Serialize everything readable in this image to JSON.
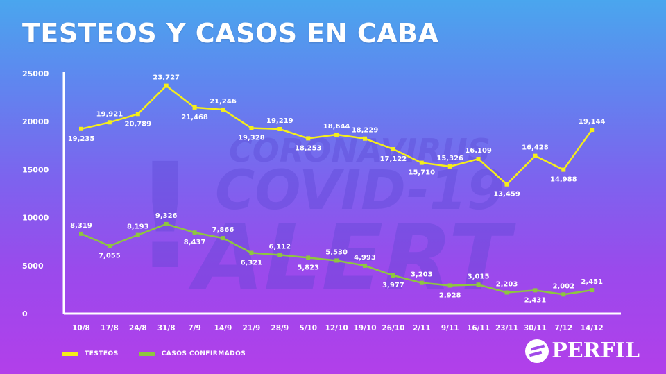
{
  "title": "TESTEOS Y CASOS EN CABA",
  "watermark": {
    "line1": "CORONAVIRUS",
    "line2": "COVID-19",
    "line3": "ALERT",
    "mark": "!"
  },
  "logo": {
    "text": "PERFIL"
  },
  "legend": [
    {
      "label": "TESTEOS",
      "color": "#f5ee1a"
    },
    {
      "label": "CASOS CONFIRMADOS",
      "color": "#8ec63f"
    }
  ],
  "chart_data": {
    "type": "line",
    "categories": [
      "10/8",
      "17/8",
      "24/8",
      "31/8",
      "7/9",
      "14/9",
      "21/9",
      "28/9",
      "5/10",
      "12/10",
      "19/10",
      "26/10",
      "2/11",
      "9/11",
      "16/11",
      "23/11",
      "30/11",
      "7/12",
      "14/12"
    ],
    "series": [
      {
        "name": "TESTEOS",
        "color": "#f5ee1a",
        "values": [
          19235,
          19921,
          20789,
          23727,
          21468,
          21246,
          19328,
          19219,
          18253,
          18644,
          18229,
          17122,
          15710,
          15326,
          16109,
          13459,
          16428,
          14988,
          19144
        ],
        "labels": [
          "19,235",
          "19,921",
          "20,789",
          "23,727",
          "21,468",
          "21,246",
          "19,328",
          "19,219",
          "18,253",
          "18,644",
          "18,229",
          "17,122",
          "15,710",
          "15,326",
          "16.109",
          "13,459",
          "16,428",
          "14,988",
          "19,144"
        ],
        "label_pos": [
          "below",
          "above",
          "below",
          "above",
          "below",
          "above",
          "below",
          "above",
          "below",
          "above",
          "above",
          "below",
          "below",
          "above",
          "above",
          "below",
          "above",
          "below",
          "above"
        ]
      },
      {
        "name": "CASOS CONFIRMADOS",
        "color": "#8ec63f",
        "values": [
          8319,
          7055,
          8193,
          9326,
          8437,
          7866,
          6321,
          6112,
          5823,
          5530,
          4993,
          3977,
          3203,
          2928,
          3015,
          2203,
          2431,
          2002,
          2451
        ],
        "labels": [
          "8,319",
          "7,055",
          "8,193",
          "9,326",
          "8,437",
          "7,866",
          "6,321",
          "6,112",
          "5,823",
          "5,530",
          "4,993",
          "3,977",
          "3,203",
          "2,928",
          "3,015",
          "2,203",
          "2,431",
          "2,002",
          "2,451"
        ],
        "label_pos": [
          "above",
          "below",
          "above",
          "above",
          "below",
          "above",
          "below",
          "above",
          "below",
          "above",
          "above",
          "below",
          "above",
          "below",
          "above",
          "above",
          "below",
          "above",
          "above"
        ]
      }
    ],
    "yticks": [
      "0",
      "5000",
      "10000",
      "15000",
      "20000",
      "25000"
    ],
    "ylim": [
      0,
      25000
    ],
    "xlabel": "",
    "ylabel": "",
    "grid": false,
    "legend_position": "bottom-left"
  }
}
